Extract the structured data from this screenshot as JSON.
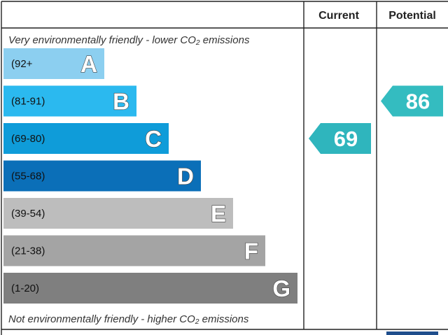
{
  "header": {
    "current_label": "Current",
    "potential_label": "Potential"
  },
  "top_note": "Very environmentally friendly - lower CO₂ emissions",
  "bottom_note": "Not environmentally friendly - higher CO₂ emissions",
  "chart_data": {
    "type": "bar",
    "title": "",
    "bands": [
      {
        "letter": "A",
        "range": "(92+",
        "color": "#8ccff0"
      },
      {
        "letter": "B",
        "range": "(81-91)",
        "color": "#2bb9ef"
      },
      {
        "letter": "C",
        "range": "(69-80)",
        "color": "#0f9cd9"
      },
      {
        "letter": "D",
        "range": "(55-68)",
        "color": "#0b6fb8"
      },
      {
        "letter": "E",
        "range": "(39-54)",
        "color": "#bdbdbd"
      },
      {
        "letter": "F",
        "range": "(21-38)",
        "color": "#a4a4a4"
      },
      {
        "letter": "G",
        "range": "(1-20)",
        "color": "#7f7f7f"
      }
    ],
    "current": {
      "value": 69,
      "band": "C",
      "color": "#2fb5bd"
    },
    "potential": {
      "value": 86,
      "band": "B",
      "color": "#34bcc0"
    }
  }
}
